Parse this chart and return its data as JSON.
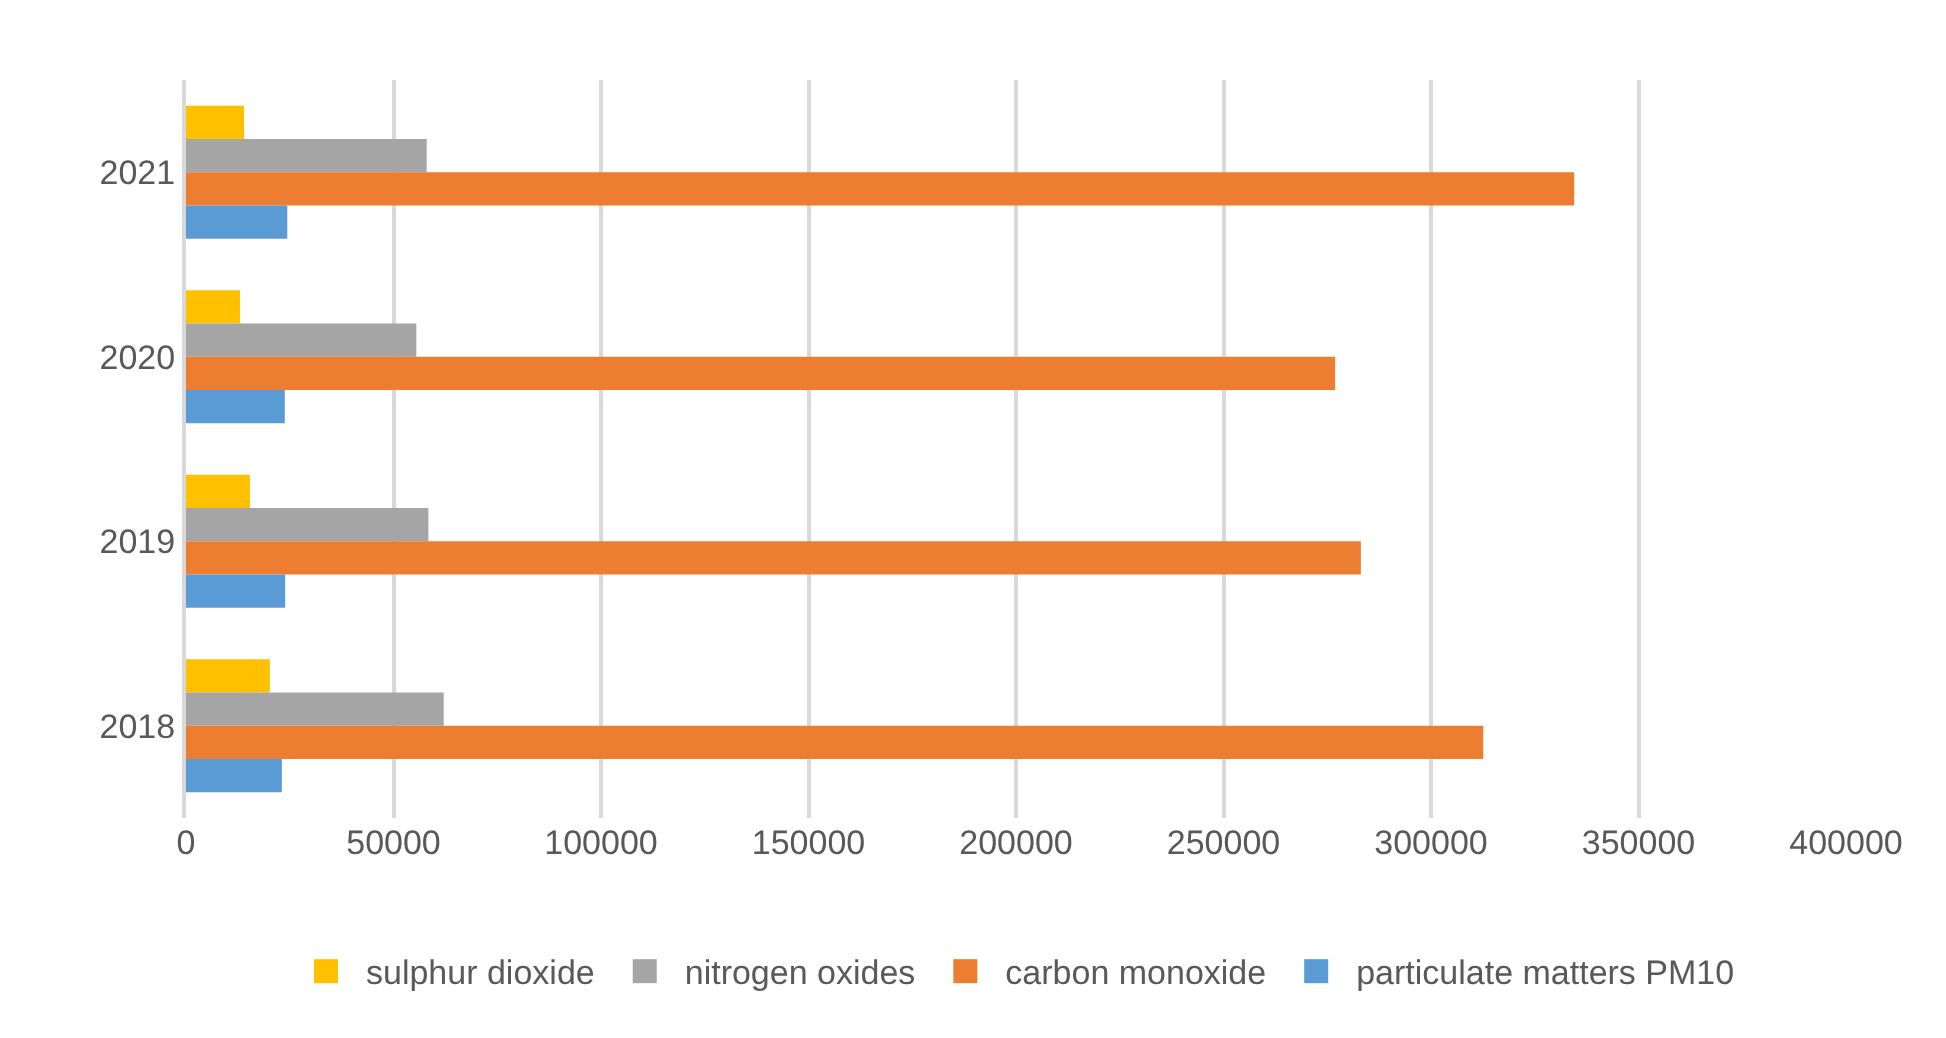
{
  "chart_data": {
    "type": "bar",
    "orientation": "horizontal",
    "categories": [
      "2021",
      "2020",
      "2019",
      "2018"
    ],
    "series": [
      {
        "name": "sulphur dioxide",
        "color": "#ffc000",
        "values": [
          14000,
          13000,
          15400,
          20200
        ]
      },
      {
        "name": "nitrogen oxides",
        "color": "#a5a5a5",
        "values": [
          58000,
          55500,
          58400,
          62100
        ]
      },
      {
        "name": "carbon monoxide",
        "color": "#ed7d31",
        "values": [
          334500,
          276900,
          283100,
          312600
        ]
      },
      {
        "name": "particulate matters PM10",
        "color": "#5b9bd5",
        "values": [
          24400,
          23800,
          23900,
          23100
        ]
      }
    ],
    "xlim": [
      0,
      400000
    ],
    "xticks": [
      0,
      50000,
      100000,
      150000,
      200000,
      250000,
      300000,
      350000,
      400000
    ],
    "grid": "x",
    "legend": "bottom"
  }
}
